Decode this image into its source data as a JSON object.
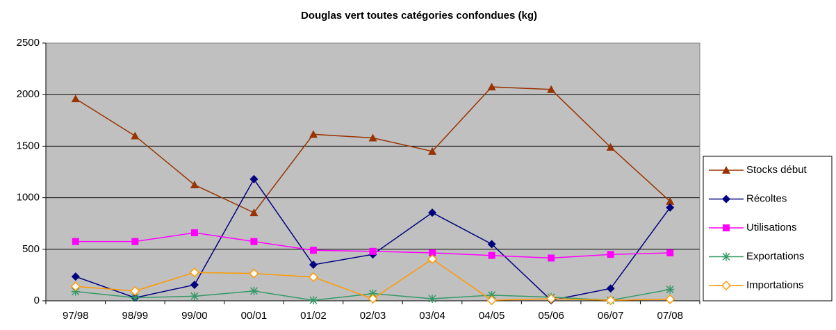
{
  "chart_data": {
    "type": "line",
    "title": "Douglas vert toutes catégories confondues (kg)",
    "categories": [
      "97/98",
      "98/99",
      "99/00",
      "00/01",
      "01/02",
      "02/03",
      "03/04",
      "04/05",
      "05/06",
      "06/07",
      "07/08"
    ],
    "ylim": [
      0,
      2500
    ],
    "yticks": [
      0,
      500,
      1000,
      1500,
      2000,
      2500
    ],
    "grid": true,
    "legend": "right",
    "series": [
      {
        "name": "Stocks début",
        "color": "#993300",
        "marker": "triangle",
        "values": [
          1960,
          1600,
          1125,
          855,
          1615,
          1580,
          1450,
          2075,
          2050,
          1490,
          965
        ]
      },
      {
        "name": "Récoltes",
        "color": "#000080",
        "marker": "diamond",
        "values": [
          235,
          30,
          155,
          1180,
          350,
          450,
          855,
          550,
          5,
          120,
          905
        ]
      },
      {
        "name": "Utilisations",
        "color": "#ff00ff",
        "marker": "square",
        "values": [
          575,
          575,
          660,
          575,
          490,
          480,
          465,
          440,
          415,
          450,
          465
        ]
      },
      {
        "name": "Exportations",
        "color": "#339966",
        "marker": "star",
        "values": [
          90,
          30,
          45,
          95,
          5,
          70,
          20,
          55,
          35,
          5,
          110
        ]
      },
      {
        "name": "Importations",
        "color": "#ff9900",
        "marker": "open-diamond",
        "values": [
          140,
          95,
          275,
          265,
          230,
          20,
          405,
          5,
          20,
          5,
          15
        ]
      }
    ]
  }
}
